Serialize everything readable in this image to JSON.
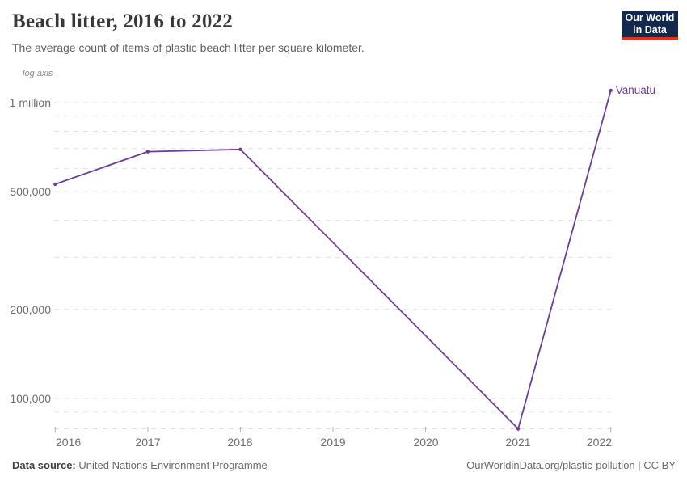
{
  "header": {
    "title": "Beach litter, 2016 to 2022",
    "subtitle": "The average count of items of plastic beach litter per square kilometer.",
    "logo_line1": "Our World",
    "logo_line2": "in Data"
  },
  "chart_data": {
    "type": "line",
    "title": "Beach litter, 2016 to 2022",
    "scale_note": "log axis",
    "x": [
      2016,
      2017,
      2018,
      2021,
      2022
    ],
    "series": [
      {
        "name": "Vanuatu",
        "color": "#6d3e91",
        "values": [
          530000,
          683000,
          695000,
          79000,
          1100000
        ]
      }
    ],
    "x_ticks": [
      "2016",
      "2017",
      "2018",
      "2019",
      "2020",
      "2021",
      "2022"
    ],
    "y_tick_labels": [
      {
        "value": 1000000,
        "label": "1 million"
      },
      {
        "value": 500000,
        "label": "500,000"
      },
      {
        "value": 200000,
        "label": "200,000"
      },
      {
        "value": 100000,
        "label": "100,000"
      }
    ],
    "y_gridline_values": [
      1000000,
      900000,
      800000,
      700000,
      600000,
      500000,
      400000,
      300000,
      200000,
      100000,
      90000,
      79000
    ],
    "y_axis": {
      "scale": "log",
      "min": 79000,
      "max": 1100000
    },
    "grid": true,
    "legend": "end-of-line entity label"
  },
  "footer": {
    "source_label": "Data source:",
    "source_value": "United Nations Environment Programme",
    "link": "OurWorldinData.org/plastic-pollution | CC BY"
  },
  "colors": {
    "line": "#6d3e91",
    "gridline": "#e0e0e0",
    "tick": "#b3b3b3",
    "axis_text": "#6e6e6e",
    "logo_bg": "#12294d",
    "logo_stripe": "#e0301e"
  }
}
